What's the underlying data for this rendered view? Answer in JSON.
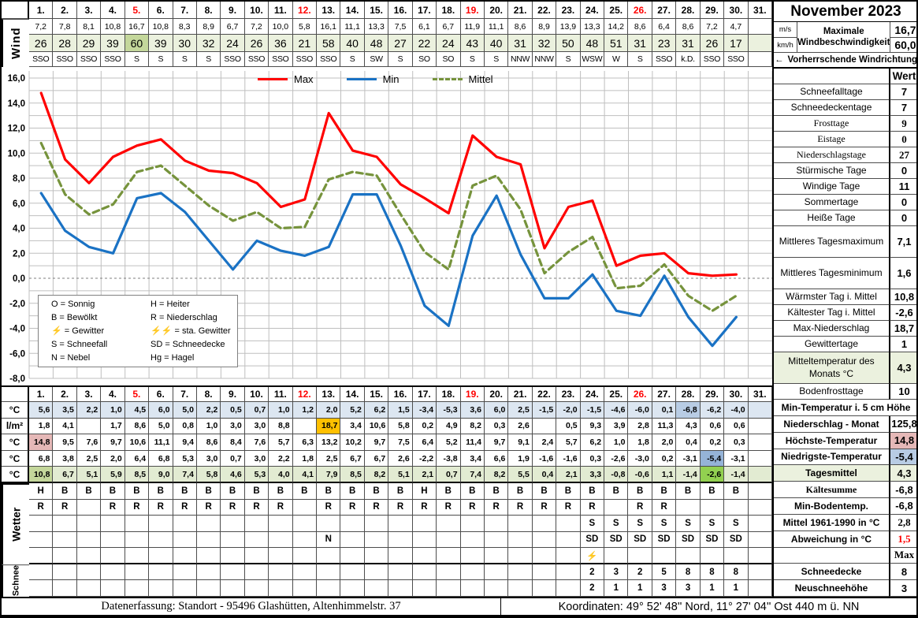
{
  "title": "November 2023",
  "days": [
    "1.",
    "2.",
    "3.",
    "4.",
    "5.",
    "6.",
    "7.",
    "8.",
    "9.",
    "10.",
    "11.",
    "12.",
    "13.",
    "14.",
    "15.",
    "16.",
    "17.",
    "18.",
    "19.",
    "20.",
    "21.",
    "22.",
    "23.",
    "24.",
    "25.",
    "26.",
    "27.",
    "28.",
    "29.",
    "30.",
    "31."
  ],
  "red_days": [
    5,
    12,
    19,
    26
  ],
  "wind": {
    "label": "Wind",
    "ms": [
      "7,2",
      "7,8",
      "8,1",
      "10,8",
      "16,7",
      "10,8",
      "8,3",
      "8,9",
      "6,7",
      "7,2",
      "10,0",
      "5,8",
      "16,1",
      "11,1",
      "13,3",
      "7,5",
      "6,1",
      "6,7",
      "11,9",
      "11,1",
      "8,6",
      "8,9",
      "13,9",
      "13,3",
      "14,2",
      "8,6",
      "6,4",
      "8,6",
      "7,2",
      "4,7",
      ""
    ],
    "kmh": [
      "26",
      "28",
      "29",
      "39",
      "60",
      "39",
      "30",
      "32",
      "24",
      "26",
      "36",
      "21",
      "58",
      "40",
      "48",
      "27",
      "22",
      "24",
      "43",
      "40",
      "31",
      "32",
      "50",
      "48",
      "51",
      "31",
      "23",
      "31",
      "26",
      "17",
      ""
    ],
    "dir": [
      "SSO",
      "SSO",
      "SSO",
      "SSO",
      "S",
      "S",
      "S",
      "S",
      "SSO",
      "SSO",
      "SSO",
      "SSO",
      "SSO",
      "S",
      "SW",
      "S",
      "SO",
      "SO",
      "S",
      "S",
      "NNW",
      "NNW",
      "S",
      "WSW",
      "W",
      "S",
      "SSO",
      "k.D.",
      "SSO",
      "SSO",
      ""
    ],
    "kmh_highlight_day": 5,
    "unit_ms": "m/s",
    "unit_kmh": "km/h",
    "summary_label": "Maximale Windbeschwindigkeit",
    "max_ms": "16,7",
    "max_kmh": "60,0",
    "direction_arrow": "←",
    "direction_note": "Vorherrschende Windrichtung"
  },
  "chart_data": {
    "type": "line",
    "categories": [
      1,
      2,
      3,
      4,
      5,
      6,
      7,
      8,
      9,
      10,
      11,
      12,
      13,
      14,
      15,
      16,
      17,
      18,
      19,
      20,
      21,
      22,
      23,
      24,
      25,
      26,
      27,
      28,
      29,
      30,
      31
    ],
    "ylim": [
      -8,
      16
    ],
    "ytick_step": 2,
    "grid": true,
    "legend_position": "top",
    "series": [
      {
        "name": "Max",
        "color": "#ff0000",
        "values": [
          14.8,
          9.5,
          7.6,
          9.7,
          10.6,
          11.1,
          9.4,
          8.6,
          8.4,
          7.6,
          5.7,
          6.3,
          13.2,
          10.2,
          9.7,
          7.5,
          6.4,
          5.2,
          11.4,
          9.7,
          9.1,
          2.4,
          5.7,
          6.2,
          1.0,
          1.8,
          2.0,
          0.4,
          0.2,
          0.3,
          null
        ]
      },
      {
        "name": "Min",
        "color": "#1a72c4",
        "values": [
          6.8,
          3.8,
          2.5,
          2.0,
          6.4,
          6.8,
          5.3,
          3.0,
          0.7,
          3.0,
          2.2,
          1.8,
          2.5,
          6.7,
          6.7,
          2.6,
          -2.2,
          -3.8,
          3.4,
          6.6,
          1.9,
          -1.6,
          -1.6,
          0.3,
          -2.6,
          -3.0,
          0.2,
          -3.1,
          -5.4,
          -3.1,
          null
        ]
      },
      {
        "name": "Mittel",
        "color": "#76933c",
        "dash": "8 5",
        "values": [
          10.8,
          6.7,
          5.1,
          5.9,
          8.5,
          9.0,
          7.4,
          5.8,
          4.6,
          5.3,
          4.0,
          4.1,
          7.9,
          8.5,
          8.2,
          5.1,
          2.1,
          0.7,
          7.4,
          8.2,
          5.5,
          0.4,
          2.1,
          3.3,
          -0.8,
          -0.6,
          1.1,
          -1.4,
          -2.6,
          -1.4,
          null
        ]
      }
    ]
  },
  "symbol_legend": {
    "col1": [
      {
        "k": "O",
        "t": "Sonnig",
        "red": false
      },
      {
        "k": "B",
        "t": "Bewölkt",
        "red": false
      },
      {
        "k": "⚡",
        "t": "Gewitter",
        "red": true
      },
      {
        "k": "S",
        "t": "Schneefall",
        "red": false
      },
      {
        "k": "N",
        "t": "Nebel",
        "red": false
      }
    ],
    "col2": [
      {
        "k": "H",
        "t": "Heiter",
        "red": false
      },
      {
        "k": "R",
        "t": "Niederschlag",
        "red": false
      },
      {
        "k": "⚡⚡",
        "t": "sta. Gewitter",
        "red": true
      },
      {
        "k": "SD",
        "t": "Schneedecke",
        "red": false
      },
      {
        "k": "Hg",
        "t": "Hagel",
        "red": false
      }
    ]
  },
  "stats": {
    "header": "Wert",
    "rows": [
      {
        "label": "Schneefalltage",
        "value": "7"
      },
      {
        "label": "Schneedeckentage",
        "value": "7"
      },
      {
        "label": "Frosttage",
        "value": "9",
        "serif": true
      },
      {
        "label": "Eistage",
        "value": "0",
        "serif": true
      },
      {
        "label": "Niederschlagstage",
        "value": "27",
        "serif": true
      },
      {
        "label": "Stürmische Tage",
        "value": "0"
      },
      {
        "label": "Windige Tage",
        "value": "11"
      },
      {
        "label": "Sommertage",
        "value": "0"
      },
      {
        "label": "Heiße Tage",
        "value": "0"
      },
      {
        "label": "Mittleres Tagesmaximum",
        "value": "7,1",
        "tall": true
      },
      {
        "label": "Mittleres Tagesminimum",
        "value": "1,6",
        "tall": true
      },
      {
        "label": "Wärmster Tag i. Mittel",
        "value": "10,8"
      },
      {
        "label": "Kältester Tag i. Mittel",
        "value": "-2,6"
      },
      {
        "label": "Max-Niederschlag",
        "value": "18,7"
      },
      {
        "label": "Gewittertage",
        "value": "1"
      },
      {
        "label": "Mitteltemperatur des Monats °C",
        "value": "4,3",
        "tall": true,
        "green": true
      },
      {
        "label": "Bodenfrosttage",
        "value": "10"
      }
    ]
  },
  "daily": {
    "rows": [
      {
        "unit": "°C",
        "name": "min-ground-temp",
        "values": [
          "5,6",
          "3,5",
          "2,2",
          "1,0",
          "4,5",
          "6,0",
          "5,0",
          "2,2",
          "0,5",
          "0,7",
          "1,0",
          "1,2",
          "2,0",
          "5,2",
          "6,2",
          "1,5",
          "-3,4",
          "-5,3",
          "3,6",
          "6,0",
          "2,5",
          "-1,5",
          "-2,0",
          "-1,5",
          "-4,6",
          "-6,0",
          "0,1",
          "-6,8",
          "-6,2",
          "-4,0",
          ""
        ],
        "row_bg": "#dce6f1",
        "cell_bg": {
          "28": "#b8cce4"
        }
      },
      {
        "unit": "l/m²",
        "name": "precipitation",
        "values": [
          "1,8",
          "4,1",
          "",
          "1,7",
          "8,6",
          "5,0",
          "0,8",
          "1,0",
          "3,0",
          "3,0",
          "8,8",
          "",
          "18,7",
          "3,4",
          "10,6",
          "5,8",
          "0,2",
          "4,9",
          "8,2",
          "0,3",
          "2,6",
          "",
          "0,5",
          "9,3",
          "3,9",
          "2,8",
          "11,3",
          "4,3",
          "0,6",
          "0,6",
          ""
        ],
        "cell_bg": {
          "13": "#ffc000"
        }
      },
      {
        "unit": "°C",
        "name": "max-temp",
        "values": [
          "14,8",
          "9,5",
          "7,6",
          "9,7",
          "10,6",
          "11,1",
          "9,4",
          "8,6",
          "8,4",
          "7,6",
          "5,7",
          "6,3",
          "13,2",
          "10,2",
          "9,7",
          "7,5",
          "6,4",
          "5,2",
          "11,4",
          "9,7",
          "9,1",
          "2,4",
          "5,7",
          "6,2",
          "1,0",
          "1,8",
          "2,0",
          "0,4",
          "0,2",
          "0,3",
          ""
        ],
        "cell_bg": {
          "1": "#e5b8b7"
        }
      },
      {
        "unit": "°C",
        "name": "min-temp",
        "values": [
          "6,8",
          "3,8",
          "2,5",
          "2,0",
          "6,4",
          "6,8",
          "5,3",
          "3,0",
          "0,7",
          "3,0",
          "2,2",
          "1,8",
          "2,5",
          "6,7",
          "6,7",
          "2,6",
          "-2,2",
          "-3,8",
          "3,4",
          "6,6",
          "1,9",
          "-1,6",
          "-1,6",
          "0,3",
          "-2,6",
          "-3,0",
          "0,2",
          "-3,1",
          "-5,4",
          "-3,1",
          ""
        ],
        "cell_bg": {
          "29": "#95b3d7"
        }
      },
      {
        "unit": "°C",
        "name": "daily-mean",
        "values": [
          "10,8",
          "6,7",
          "5,1",
          "5,9",
          "8,5",
          "9,0",
          "7,4",
          "5,8",
          "4,6",
          "5,3",
          "4,0",
          "4,1",
          "7,9",
          "8,5",
          "8,2",
          "5,1",
          "2,1",
          "0,7",
          "7,4",
          "8,2",
          "5,5",
          "0,4",
          "2,1",
          "3,3",
          "-0,8",
          "-0,6",
          "1,1",
          "-1,4",
          "-2,6",
          "-1,4",
          ""
        ],
        "row_bg": "#e2ebd2",
        "cell_bg": {
          "1": "#c4d79b",
          "29": "#92d050"
        }
      }
    ],
    "wetter_label": "Wetter",
    "wetter_rows": [
      {
        "name": "weather-sky",
        "values": [
          "H",
          "B",
          "B",
          "B",
          "B",
          "B",
          "B",
          "B",
          "B",
          "B",
          "B",
          "B",
          "B",
          "B",
          "B",
          "B",
          "H",
          "B",
          "B",
          "B",
          "B",
          "B",
          "B",
          "B",
          "B",
          "B",
          "B",
          "B",
          "B",
          "B",
          ""
        ]
      },
      {
        "name": "weather-rain",
        "values": [
          "R",
          "R",
          "",
          "R",
          "R",
          "R",
          "R",
          "R",
          "R",
          "R",
          "R",
          "",
          "R",
          "R",
          "R",
          "R",
          "R",
          "R",
          "R",
          "R",
          "R",
          "R",
          "R",
          "R",
          "",
          "R",
          "R",
          "",
          "",
          "",
          ""
        ]
      },
      {
        "name": "weather-snowfall",
        "values": [
          "",
          "",
          "",
          "",
          "",
          "",
          "",
          "",
          "",
          "",
          "",
          "",
          "",
          "",
          "",
          "",
          "",
          "",
          "",
          "",
          "",
          "",
          "",
          "S",
          "S",
          "S",
          "S",
          "S",
          "S",
          "S",
          ""
        ]
      },
      {
        "name": "weather-fog-snowcover",
        "values": [
          "",
          "",
          "",
          "",
          "",
          "",
          "",
          "",
          "",
          "",
          "",
          "",
          "N",
          "",
          "",
          "",
          "",
          "",
          "",
          "",
          "",
          "",
          "",
          "SD",
          "SD",
          "SD",
          "SD",
          "SD",
          "SD",
          "SD",
          ""
        ]
      },
      {
        "name": "weather-thunder",
        "values": [
          "",
          "",
          "",
          "",
          "",
          "",
          "",
          "",
          "",
          "",
          "",
          "",
          "",
          "",
          "",
          "",
          "",
          "",
          "",
          "",
          "",
          "",
          "",
          "⚡",
          "",
          "",
          "",
          "",
          "",
          "",
          ""
        ]
      }
    ],
    "schnee_label": "Schnee",
    "schnee_rows": [
      {
        "name": "snow-depth",
        "values": [
          "",
          "",
          "",
          "",
          "",
          "",
          "",
          "",
          "",
          "",
          "",
          "",
          "",
          "",
          "",
          "",
          "",
          "",
          "",
          "",
          "",
          "",
          "",
          "2",
          "3",
          "2",
          "5",
          "8",
          "8",
          "8",
          ""
        ]
      },
      {
        "name": "fresh-snow",
        "values": [
          "",
          "",
          "",
          "",
          "",
          "",
          "",
          "",
          "",
          "",
          "",
          "",
          "",
          "",
          "",
          "",
          "",
          "",
          "",
          "",
          "",
          "",
          "",
          "2",
          "1",
          "1",
          "3",
          "3",
          "1",
          "1",
          ""
        ]
      }
    ]
  },
  "summary": {
    "rows": [
      {
        "label": "Min-Temperatur i. 5 cm Höhe",
        "value": null,
        "span": true
      },
      {
        "label": "Niederschlag - Monat",
        "value": "125,8"
      },
      {
        "label": "Höchste-Temperatur",
        "value": "14,8",
        "value_bg": "#e5b8b7"
      },
      {
        "label": "Niedrigste-Temperatur",
        "value": "-5,4",
        "value_bg": "#b8cce4"
      },
      {
        "label": "Tagesmittel",
        "value": "4,3",
        "row_green": true
      },
      {
        "label": "Kältesumme",
        "value": "-6,8",
        "serif": true
      },
      {
        "label": "Min-Bodentemp.",
        "value": "-6,8"
      },
      {
        "label": "Mittel 1961-1990 in °C",
        "value": "2,8",
        "value_serif": true
      },
      {
        "label": "Abweichung in °C",
        "value": "1,5",
        "value_serif": true,
        "value_red": true
      },
      {
        "label": "",
        "value": "Max",
        "value_serif": true
      },
      {
        "label": "Schneedecke",
        "value": "8"
      },
      {
        "label": "Neuschneehöhe",
        "value": "3"
      }
    ]
  },
  "footer": {
    "left": "Datenerfassung:  Standort -  95496  Glashütten, Altenhimmelstr. 37",
    "right": "Koordinaten:  49° 52' 48'' Nord,   11° 27' 04'' Ost   440 m ü. NN"
  }
}
